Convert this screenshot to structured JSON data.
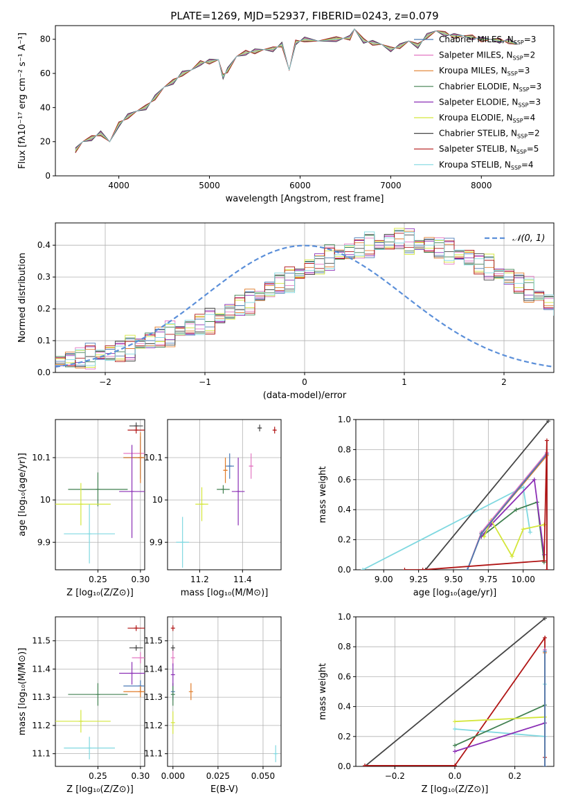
{
  "figure": {
    "title": "PLATE=1269, MJD=52937, FIBERID=0243, z=0.079"
  },
  "models": [
    {
      "label": "Chabrier MILES, N",
      "sub": "SSP",
      "suffix": "=3",
      "color": "#4a7ab5",
      "key": "chabrier_miles"
    },
    {
      "label": "Salpeter MILES, N",
      "sub": "SSP",
      "suffix": "=2",
      "color": "#e377c2",
      "key": "salpeter_miles"
    },
    {
      "label": "Kroupa MILES, N",
      "sub": "SSP",
      "suffix": "=3",
      "color": "#e07b28",
      "key": "kroupa_miles"
    },
    {
      "label": "Chabrier ELODIE, N",
      "sub": "SSP",
      "suffix": "=3",
      "color": "#3f7f4f",
      "key": "chabrier_elodie"
    },
    {
      "label": "Salpeter ELODIE, N",
      "sub": "SSP",
      "suffix": "=3",
      "color": "#8b2fb5",
      "key": "salpeter_elodie"
    },
    {
      "label": "Kroupa ELODIE, N",
      "sub": "SSP",
      "suffix": "=4",
      "color": "#d4e63a",
      "key": "kroupa_elodie"
    },
    {
      "label": "Chabrier STELIB, N",
      "sub": "SSP",
      "suffix": "=2",
      "color": "#444444",
      "key": "chabrier_stelib"
    },
    {
      "label": "Salpeter STELIB, N",
      "sub": "SSP",
      "suffix": "=5",
      "color": "#b01515",
      "key": "salpeter_stelib"
    },
    {
      "label": "Kroupa STELIB, N",
      "sub": "SSP",
      "suffix": "=4",
      "color": "#7fd8e0",
      "key": "kroupa_stelib"
    }
  ],
  "chart_data": [
    {
      "id": "spectrum",
      "type": "line",
      "xlabel": "wavelength [Angstrom, rest frame]",
      "ylabel": "Flux [fλ10⁻¹⁷ erg cm⁻² s⁻¹ A⁻¹]",
      "xlim": [
        3300,
        8800
      ],
      "ylim": [
        0,
        88
      ],
      "xticks": [
        4000,
        5000,
        6000,
        7000,
        8000
      ],
      "yticks": [
        0,
        20,
        40,
        60,
        80
      ],
      "x": [
        3520,
        3600,
        3700,
        3800,
        3900,
        4000,
        4100,
        4200,
        4300,
        4400,
        4500,
        4600,
        4700,
        4800,
        4900,
        5000,
        5100,
        5150,
        5200,
        5300,
        5400,
        5500,
        5600,
        5700,
        5800,
        5880,
        5950,
        6050,
        6200,
        6400,
        6550,
        6600,
        6700,
        6800,
        6900,
        7000,
        7100,
        7200,
        7300,
        7400,
        7500,
        7600,
        7700,
        7800,
        7900,
        8000,
        8100,
        8200,
        8300,
        8400
      ],
      "y": [
        15,
        20,
        22,
        25,
        20,
        30,
        35,
        38,
        40,
        46,
        52,
        55,
        60,
        62,
        66,
        67,
        68,
        58,
        62,
        70,
        72,
        73,
        74,
        74,
        77,
        62,
        78,
        80,
        79,
        80,
        81,
        86,
        79,
        78,
        77,
        74,
        76,
        79,
        76,
        82,
        85,
        83,
        82,
        82,
        81,
        80,
        80,
        79,
        79,
        77
      ]
    },
    {
      "id": "residuals",
      "type": "histogram",
      "xlabel": "(data-model)/error",
      "ylabel": "Normed distribution",
      "xlim": [
        -2.5,
        2.5
      ],
      "ylim": [
        0,
        0.47
      ],
      "xticks": [
        -2,
        -1,
        0,
        1,
        2
      ],
      "yticks": [
        0.0,
        0.1,
        0.2,
        0.3,
        0.4
      ],
      "legend": "𝒩(0, 1)",
      "legend_position": "top-right",
      "bin_width": 0.1,
      "bin_start": -2.5,
      "values": [
        0.035,
        0.04,
        0.045,
        0.05,
        0.055,
        0.06,
        0.065,
        0.075,
        0.09,
        0.1,
        0.11,
        0.12,
        0.13,
        0.14,
        0.15,
        0.16,
        0.17,
        0.19,
        0.21,
        0.22,
        0.24,
        0.26,
        0.28,
        0.29,
        0.31,
        0.33,
        0.34,
        0.36,
        0.37,
        0.38,
        0.39,
        0.4,
        0.4,
        0.41,
        0.42,
        0.41,
        0.4,
        0.4,
        0.39,
        0.38,
        0.37,
        0.36,
        0.34,
        0.33,
        0.31,
        0.3,
        0.28,
        0.26,
        0.24,
        0.22,
        0.21,
        0.2,
        0.18,
        0.17,
        0.15,
        0.14,
        0.13,
        0.12,
        0.11,
        0.1,
        0.09,
        0.08,
        0.07,
        0.065,
        0.06,
        0.055,
        0.05,
        0.045,
        0.04,
        0.035,
        0.03,
        0.03,
        0.025,
        0.025,
        0.025,
        0.025,
        0.025,
        0.025,
        0.025,
        0.025,
        0.025,
        0.025,
        0.025,
        0.025,
        0.025,
        0.025,
        0.025,
        0.025,
        0.025,
        0.025,
        0.025,
        0.025,
        0.025,
        0.025,
        0.025,
        0.025,
        0.025,
        0.025,
        0.025,
        0.025
      ],
      "gaussian": {
        "mean": 0,
        "sigma": 1
      }
    },
    {
      "id": "age_vs_Z",
      "type": "scatter",
      "xlabel": "Z [log₁₀(Z/Z⊙)]",
      "ylabel": "age  [log₁₀(age/yr)]",
      "xlim": [
        0.2,
        0.305
      ],
      "ylim": [
        9.835,
        10.19
      ],
      "xticks": [
        0.25,
        0.3
      ],
      "xticklabels": [
        "0.25",
        "0.30"
      ],
      "yticks": [
        9.9,
        10.0,
        10.1
      ],
      "points": [
        {
          "key": "chabrier_miles",
          "x": 0.3,
          "y": 10.1,
          "xerr": 0.02,
          "yerr": 0.05
        },
        {
          "key": "salpeter_miles",
          "x": 0.3,
          "y": 10.11,
          "xerr": 0.02,
          "yerr": 0.02
        },
        {
          "key": "kroupa_miles",
          "x": 0.3,
          "y": 10.1,
          "xerr": 0.02,
          "yerr": 0.06
        },
        {
          "key": "chabrier_elodie",
          "x": 0.25,
          "y": 10.025,
          "xerr": 0.035,
          "yerr": 0.04
        },
        {
          "key": "salpeter_elodie",
          "x": 0.29,
          "y": 10.02,
          "xerr": 0.015,
          "yerr": 0.11
        },
        {
          "key": "kroupa_elodie",
          "x": 0.23,
          "y": 9.99,
          "xerr": 0.035,
          "yerr": 0.05
        },
        {
          "key": "chabrier_stelib",
          "x": 0.295,
          "y": 10.175,
          "xerr": 0.008,
          "yerr": 0.008
        },
        {
          "key": "salpeter_stelib",
          "x": 0.295,
          "y": 10.165,
          "xerr": 0.01,
          "yerr": 0.008
        },
        {
          "key": "kroupa_stelib",
          "x": 0.24,
          "y": 9.92,
          "xerr": 0.03,
          "yerr": 0.07
        }
      ]
    },
    {
      "id": "age_vs_mass",
      "type": "scatter",
      "xlabel": "mass [log₁₀(M/M⊙)]",
      "ylabel": "",
      "xlim": [
        11.05,
        11.58
      ],
      "ylim": [
        9.835,
        10.19
      ],
      "xticks": [
        11.2,
        11.4
      ],
      "xticklabels": [
        "11.2",
        "11.4"
      ],
      "yticks": [
        9.9,
        10.0,
        10.1
      ],
      "points": [
        {
          "key": "chabrier_miles",
          "x": 11.34,
          "y": 10.08,
          "xerr": 0.02,
          "yerr": 0.03
        },
        {
          "key": "salpeter_miles",
          "x": 11.44,
          "y": 10.08,
          "xerr": 0.01,
          "yerr": 0.03
        },
        {
          "key": "kroupa_miles",
          "x": 11.32,
          "y": 10.07,
          "xerr": 0.01,
          "yerr": 0.03
        },
        {
          "key": "chabrier_elodie",
          "x": 11.31,
          "y": 10.025,
          "xerr": 0.03,
          "yerr": 0.01
        },
        {
          "key": "salpeter_elodie",
          "x": 11.38,
          "y": 10.02,
          "xerr": 0.03,
          "yerr": 0.08
        },
        {
          "key": "kroupa_elodie",
          "x": 11.21,
          "y": 9.99,
          "xerr": 0.03,
          "yerr": 0.04
        },
        {
          "key": "chabrier_stelib",
          "x": 11.48,
          "y": 10.17,
          "xerr": 0.01,
          "yerr": 0.008
        },
        {
          "key": "salpeter_stelib",
          "x": 11.55,
          "y": 10.165,
          "xerr": 0.005,
          "yerr": 0.008
        },
        {
          "key": "kroupa_stelib",
          "x": 11.12,
          "y": 9.9,
          "xerr": 0.03,
          "yerr": 0.06
        }
      ]
    },
    {
      "id": "weight_vs_age",
      "type": "line",
      "xlabel": "age  [log₁₀(age/yr)]",
      "ylabel": "mass weight",
      "xlim": [
        8.8,
        10.22
      ],
      "ylim": [
        0,
        1.0
      ],
      "xticks": [
        9.0,
        9.25,
        9.5,
        9.75,
        10.0
      ],
      "xticklabels": [
        "9.00",
        "9.25",
        "9.50",
        "9.75",
        "10.00"
      ],
      "yticks": [
        0.0,
        0.2,
        0.4,
        0.6,
        0.8,
        1.0
      ],
      "series": [
        {
          "key": "kroupa_stelib",
          "x": [
            8.85,
            10.0,
            10.05
          ],
          "y": [
            0.0,
            0.55,
            0.25
          ]
        },
        {
          "key": "chabrier_stelib",
          "x": [
            9.3,
            10.18
          ],
          "y": [
            0.0,
            0.99
          ]
        },
        {
          "key": "chabrier_elodie",
          "x": [
            9.7,
            9.95,
            10.1,
            10.15
          ],
          "y": [
            0.22,
            0.4,
            0.45,
            0.05
          ]
        },
        {
          "key": "salpeter_elodie",
          "x": [
            9.7,
            9.77,
            10.08,
            10.15
          ],
          "y": [
            0.22,
            0.3,
            0.6,
            0.1
          ]
        },
        {
          "key": "kroupa_elodie",
          "x": [
            9.72,
            9.77,
            9.92,
            10.0,
            10.15
          ],
          "y": [
            0.22,
            0.33,
            0.09,
            0.27,
            0.3
          ]
        },
        {
          "key": "salpeter_miles",
          "x": [
            9.6,
            9.7,
            10.17,
            10.17
          ],
          "y": [
            0.0,
            0.25,
            0.78,
            0.0
          ]
        },
        {
          "key": "kroupa_miles",
          "x": [
            9.6,
            9.7,
            10.17,
            10.17
          ],
          "y": [
            0.0,
            0.24,
            0.76,
            0.0
          ]
        },
        {
          "key": "chabrier_miles",
          "x": [
            9.6,
            9.7,
            10.17,
            10.17
          ],
          "y": [
            0.0,
            0.24,
            0.77,
            0.0
          ]
        },
        {
          "key": "salpeter_stelib",
          "x": [
            9.15,
            9.28,
            10.15,
            10.17,
            10.17
          ],
          "y": [
            0.0,
            0.0,
            0.06,
            0.86,
            0.0
          ]
        }
      ]
    },
    {
      "id": "mass_vs_Z",
      "type": "scatter",
      "xlabel": "Z [log₁₀(Z/Z⊙)]",
      "ylabel": "mass [log₁₀(M/M⊙)]",
      "xlim": [
        0.2,
        0.305
      ],
      "ylim": [
        11.055,
        11.585
      ],
      "xticks": [
        0.25,
        0.3
      ],
      "xticklabels": [
        "0.25",
        "0.30"
      ],
      "yticks": [
        11.1,
        11.2,
        11.3,
        11.4,
        11.5
      ],
      "points": [
        {
          "key": "chabrier_miles",
          "x": 0.3,
          "y": 11.34,
          "xerr": 0.02,
          "yerr": 0.02
        },
        {
          "key": "salpeter_miles",
          "x": 0.3,
          "y": 11.44,
          "xerr": 0.01,
          "yerr": 0.02
        },
        {
          "key": "kroupa_miles",
          "x": 0.3,
          "y": 11.32,
          "xerr": 0.02,
          "yerr": 0.02
        },
        {
          "key": "chabrier_elodie",
          "x": 0.25,
          "y": 11.31,
          "xerr": 0.035,
          "yerr": 0.04
        },
        {
          "key": "salpeter_elodie",
          "x": 0.29,
          "y": 11.385,
          "xerr": 0.015,
          "yerr": 0.04
        },
        {
          "key": "kroupa_elodie",
          "x": 0.23,
          "y": 11.215,
          "xerr": 0.035,
          "yerr": 0.04
        },
        {
          "key": "chabrier_stelib",
          "x": 0.295,
          "y": 11.475,
          "xerr": 0.008,
          "yerr": 0.01
        },
        {
          "key": "salpeter_stelib",
          "x": 0.295,
          "y": 11.545,
          "xerr": 0.01,
          "yerr": 0.01
        },
        {
          "key": "kroupa_stelib",
          "x": 0.24,
          "y": 11.12,
          "xerr": 0.03,
          "yerr": 0.04
        }
      ]
    },
    {
      "id": "mass_vs_ebv",
      "type": "scatter",
      "xlabel": "E(B-V)",
      "ylabel": "",
      "xlim": [
        -0.003,
        0.06
      ],
      "ylim": [
        11.055,
        11.585
      ],
      "xticks": [
        0.0,
        0.025,
        0.05
      ],
      "xticklabels": [
        "0.000",
        "0.025",
        "0.050"
      ],
      "yticks": [
        11.1,
        11.2,
        11.3,
        11.4,
        11.5
      ],
      "points": [
        {
          "key": "chabrier_miles",
          "x": 0.0,
          "y": 11.32,
          "xerr": 0.0,
          "yerr": 0.03
        },
        {
          "key": "salpeter_miles",
          "x": 0.0,
          "y": 11.44,
          "xerr": 0.0,
          "yerr": 0.03
        },
        {
          "key": "kroupa_miles",
          "x": 0.01,
          "y": 11.32,
          "xerr": 0.0,
          "yerr": 0.03
        },
        {
          "key": "chabrier_elodie",
          "x": 0.0,
          "y": 11.31,
          "xerr": 0.0,
          "yerr": 0.04
        },
        {
          "key": "salpeter_elodie",
          "x": 0.0,
          "y": 11.38,
          "xerr": 0.0,
          "yerr": 0.04
        },
        {
          "key": "kroupa_elodie",
          "x": 0.0,
          "y": 11.21,
          "xerr": 0.0,
          "yerr": 0.04
        },
        {
          "key": "chabrier_stelib",
          "x": 0.0,
          "y": 11.475,
          "xerr": 0.0,
          "yerr": 0.01
        },
        {
          "key": "salpeter_stelib",
          "x": 0.0,
          "y": 11.545,
          "xerr": 0.0,
          "yerr": 0.01
        },
        {
          "key": "kroupa_stelib",
          "x": 0.057,
          "y": 11.1,
          "xerr": 0.0,
          "yerr": 0.03
        }
      ]
    },
    {
      "id": "weight_vs_Z",
      "type": "line",
      "xlabel": "Z [log₁₀(Z/Z⊙)]",
      "ylabel": "mass weight",
      "xlim": [
        -0.33,
        0.33
      ],
      "ylim": [
        0,
        1.0
      ],
      "xticks": [
        -0.2,
        0.0,
        0.2
      ],
      "xticklabels": [
        "−0.2",
        "0.0",
        "0.2"
      ],
      "yticks": [
        0.0,
        0.2,
        0.4,
        0.6,
        0.8,
        1.0
      ],
      "series": [
        {
          "key": "chabrier_stelib",
          "x": [
            -0.3,
            0.3
          ],
          "y": [
            0.0,
            0.99
          ]
        },
        {
          "key": "salpeter_stelib",
          "x": [
            -0.3,
            0.0,
            0.3,
            0.3
          ],
          "y": [
            0.005,
            0.005,
            0.86,
            0.06
          ]
        },
        {
          "key": "kroupa_stelib",
          "x": [
            0.0,
            0.3,
            0.3
          ],
          "y": [
            0.25,
            0.2,
            0.55
          ]
        },
        {
          "key": "chabrier_elodie",
          "x": [
            0.0,
            0.3
          ],
          "y": [
            0.14,
            0.41
          ]
        },
        {
          "key": "salpeter_elodie",
          "x": [
            0.0,
            0.3
          ],
          "y": [
            0.1,
            0.29
          ]
        },
        {
          "key": "kroupa_elodie",
          "x": [
            0.0,
            0.3
          ],
          "y": [
            0.3,
            0.33
          ]
        },
        {
          "key": "salpeter_miles",
          "x": [
            0.3,
            0.3
          ],
          "y": [
            0.0,
            0.78
          ]
        },
        {
          "key": "kroupa_miles",
          "x": [
            0.3,
            0.3
          ],
          "y": [
            0.0,
            0.76
          ]
        },
        {
          "key": "chabrier_miles",
          "x": [
            0.3,
            0.3
          ],
          "y": [
            0.0,
            0.77
          ]
        }
      ]
    }
  ]
}
